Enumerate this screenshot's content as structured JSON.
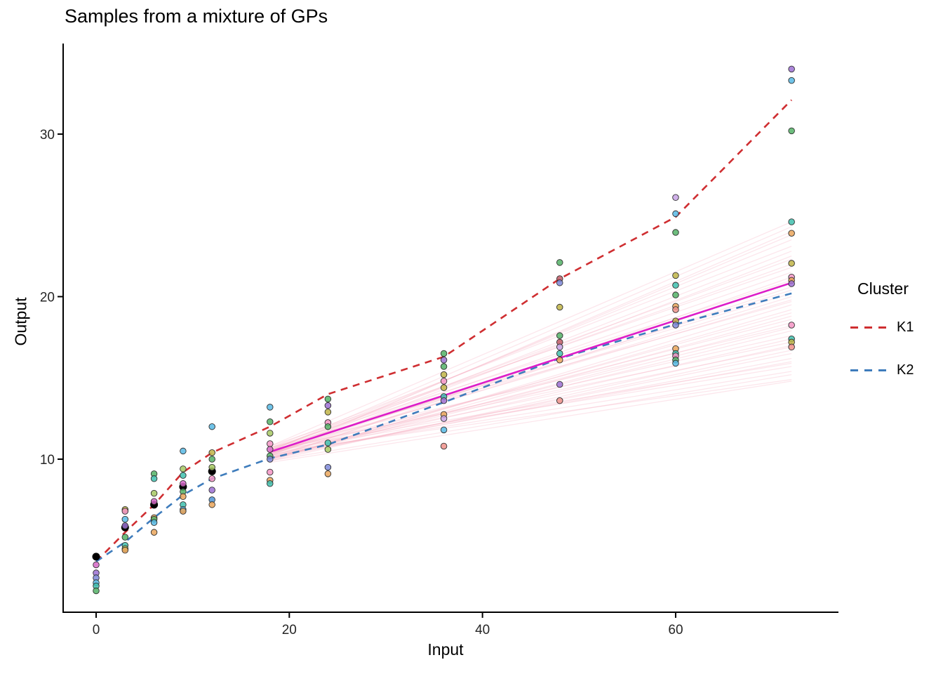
{
  "title": "Samples from a mixture of GPs",
  "x_axis": {
    "label": "Input",
    "ticks": [
      0,
      20,
      40,
      60
    ]
  },
  "y_axis": {
    "label": "Output",
    "ticks": [
      10,
      20,
      30
    ]
  },
  "legend": {
    "title": "Cluster",
    "entries": [
      {
        "label": "K1",
        "color": "#cf2e31"
      },
      {
        "label": "K2",
        "color": "#3e7cbc"
      }
    ]
  },
  "palette": {
    "green": "#54b266",
    "lightgreen": "#a6c862",
    "teal": "#3fbfae",
    "skyblue": "#57b8e4",
    "blue": "#4d94d6",
    "slate": "#7e88d8",
    "orange": "#eaa65c",
    "olive": "#bfb446",
    "pink": "#f394c4",
    "magenta": "#d467c6",
    "purple": "#9c70d4",
    "lavender": "#c8a3e6",
    "salmon": "#ee908a",
    "maroon": "#c05a66",
    "black": "#000000",
    "sample_line": "#f6a9bd",
    "mean_line": "#dd1dc8",
    "k1": "#cf2e31",
    "k2": "#3e7cbc",
    "axis": "#000000",
    "tick_text": "#262626"
  },
  "chart_data": {
    "type": "line+scatter",
    "title": "Samples from a mixture of GPs",
    "xlabel": "Input",
    "ylabel": "Output",
    "xlim": [
      -3.5,
      76
    ],
    "ylim": [
      -1,
      35.5
    ],
    "x_ticks": [
      0,
      20,
      40,
      60
    ],
    "y_ticks": [
      10,
      20,
      30
    ],
    "grid": false,
    "legend_position": "right",
    "series": [
      {
        "name": "K1",
        "style": "dashed",
        "color_key": "k1",
        "x": [
          0,
          3,
          6,
          9,
          12,
          18,
          24,
          36,
          48,
          60,
          72
        ],
        "y": [
          3.7,
          5.5,
          7.2,
          9.2,
          10.4,
          12.0,
          14.0,
          16.3,
          21.1,
          24.9,
          32.1
        ]
      },
      {
        "name": "K2",
        "style": "dashed",
        "color_key": "k2",
        "x": [
          0,
          3,
          6,
          9,
          12,
          18,
          24,
          36,
          48,
          60,
          72
        ],
        "y": [
          3.7,
          4.9,
          6.4,
          7.8,
          8.8,
          10.05,
          10.9,
          13.5,
          16.2,
          18.3,
          20.2
        ]
      },
      {
        "name": "mean",
        "style": "solid",
        "color_key": "mean_line",
        "x": [
          18,
          72
        ],
        "y": [
          10.45,
          20.85
        ]
      }
    ],
    "sample_lines": {
      "x_start": 18,
      "x_end": 72,
      "endpoints": [
        [
          10.4,
          19.8
        ],
        [
          10.1,
          16.5
        ],
        [
          10.6,
          22.3
        ],
        [
          10.2,
          18.1
        ],
        [
          10.8,
          24.6
        ],
        [
          9.9,
          15.2
        ],
        [
          10.3,
          20.9
        ],
        [
          10.5,
          17.6
        ],
        [
          10.0,
          19.2
        ],
        [
          10.7,
          23.1
        ],
        [
          10.2,
          16.0
        ],
        [
          10.4,
          21.5
        ],
        [
          9.8,
          14.8
        ],
        [
          10.6,
          20.2
        ],
        [
          10.1,
          17.9
        ],
        [
          10.3,
          22.8
        ],
        [
          10.5,
          15.7
        ],
        [
          10.0,
          18.8
        ],
        [
          10.7,
          21.0
        ],
        [
          10.2,
          24.0
        ],
        [
          10.4,
          16.9
        ],
        [
          9.9,
          19.5
        ],
        [
          10.6,
          17.2
        ],
        [
          10.1,
          20.6
        ],
        [
          10.3,
          15.4
        ],
        [
          10.5,
          23.5
        ],
        [
          10.0,
          18.4
        ],
        [
          10.8,
          21.8
        ],
        [
          10.2,
          19.0
        ],
        [
          10.4,
          14.9
        ],
        [
          10.6,
          22.0
        ],
        [
          9.9,
          17.0
        ],
        [
          10.3,
          20.0
        ],
        [
          10.5,
          24.3
        ],
        [
          10.1,
          16.2
        ],
        [
          10.7,
          19.7
        ],
        [
          10.0,
          21.2
        ],
        [
          10.4,
          18.6
        ],
        [
          10.2,
          22.5
        ],
        [
          10.6,
          15.9
        ],
        [
          10.3,
          23.8
        ],
        [
          10.1,
          17.4
        ],
        [
          10.5,
          20.4
        ],
        [
          10.0,
          16.7
        ],
        [
          10.7,
          18.2
        ]
      ]
    },
    "black_points": [
      [
        0,
        4.0
      ],
      [
        3,
        5.8
      ],
      [
        6,
        7.2
      ],
      [
        9,
        8.3
      ],
      [
        12,
        9.25
      ]
    ],
    "points": [
      [
        0,
        3.5,
        "magenta"
      ],
      [
        0,
        3.0,
        "purple"
      ],
      [
        0,
        2.7,
        "slate"
      ],
      [
        0,
        2.4,
        "skyblue"
      ],
      [
        0,
        2.2,
        "teal"
      ],
      [
        0,
        1.9,
        "green"
      ],
      [
        3,
        6.9,
        "olive"
      ],
      [
        3,
        6.8,
        "pink"
      ],
      [
        3,
        6.3,
        "skyblue"
      ],
      [
        3,
        5.9,
        "purple"
      ],
      [
        3,
        5.2,
        "green"
      ],
      [
        3,
        4.7,
        "teal"
      ],
      [
        3,
        4.5,
        "lightgreen"
      ],
      [
        3,
        4.4,
        "orange"
      ],
      [
        6,
        9.1,
        "green"
      ],
      [
        6,
        8.8,
        "teal"
      ],
      [
        6,
        7.9,
        "lightgreen"
      ],
      [
        6,
        7.4,
        "magenta"
      ],
      [
        6,
        6.4,
        "orange"
      ],
      [
        6,
        6.3,
        "green"
      ],
      [
        6,
        6.1,
        "skyblue"
      ],
      [
        6,
        5.5,
        "orange"
      ],
      [
        9,
        10.5,
        "skyblue"
      ],
      [
        9,
        9.4,
        "lightgreen"
      ],
      [
        9,
        9.0,
        "teal"
      ],
      [
        9,
        8.5,
        "magenta"
      ],
      [
        9,
        8.0,
        "green"
      ],
      [
        9,
        7.7,
        "orange"
      ],
      [
        9,
        7.2,
        "teal"
      ],
      [
        9,
        6.9,
        "skyblue"
      ],
      [
        9,
        6.8,
        "orange"
      ],
      [
        12,
        12.0,
        "skyblue"
      ],
      [
        12,
        10.4,
        "olive"
      ],
      [
        12,
        10.0,
        "green"
      ],
      [
        12,
        9.5,
        "lightgreen"
      ],
      [
        12,
        8.8,
        "pink"
      ],
      [
        12,
        8.1,
        "purple"
      ],
      [
        12,
        7.5,
        "blue"
      ],
      [
        12,
        7.2,
        "orange"
      ],
      [
        18,
        13.2,
        "skyblue"
      ],
      [
        18,
        12.3,
        "green"
      ],
      [
        18,
        11.6,
        "lightgreen"
      ],
      [
        18,
        10.95,
        "pink"
      ],
      [
        18,
        10.6,
        "magenta"
      ],
      [
        18,
        10.2,
        "green"
      ],
      [
        18,
        10.0,
        "slate"
      ],
      [
        18,
        9.2,
        "pink"
      ],
      [
        18,
        8.7,
        "orange"
      ],
      [
        18,
        8.5,
        "teal"
      ],
      [
        24,
        13.7,
        "green"
      ],
      [
        24,
        13.3,
        "purple"
      ],
      [
        24,
        12.9,
        "olive"
      ],
      [
        24,
        12.25,
        "pink"
      ],
      [
        24,
        12.0,
        "green"
      ],
      [
        24,
        11.0,
        "teal"
      ],
      [
        24,
        10.6,
        "lightgreen"
      ],
      [
        24,
        9.5,
        "slate"
      ],
      [
        24,
        9.1,
        "orange"
      ],
      [
        36,
        16.5,
        "green"
      ],
      [
        36,
        16.1,
        "purple"
      ],
      [
        36,
        15.7,
        "green"
      ],
      [
        36,
        15.2,
        "olive"
      ],
      [
        36,
        14.8,
        "pink"
      ],
      [
        36,
        14.4,
        "olive"
      ],
      [
        36,
        13.85,
        "teal"
      ],
      [
        36,
        13.6,
        "purple"
      ],
      [
        36,
        12.75,
        "orange"
      ],
      [
        36,
        12.5,
        "lavender"
      ],
      [
        36,
        11.8,
        "skyblue"
      ],
      [
        36,
        10.8,
        "salmon"
      ],
      [
        48,
        22.1,
        "green"
      ],
      [
        48,
        21.1,
        "maroon"
      ],
      [
        48,
        20.85,
        "slate"
      ],
      [
        48,
        19.35,
        "olive"
      ],
      [
        48,
        17.6,
        "green"
      ],
      [
        48,
        17.2,
        "maroon"
      ],
      [
        48,
        16.9,
        "lavender"
      ],
      [
        48,
        16.5,
        "teal"
      ],
      [
        48,
        16.1,
        "orange"
      ],
      [
        48,
        14.6,
        "purple"
      ],
      [
        48,
        13.6,
        "salmon"
      ],
      [
        60,
        26.1,
        "lavender"
      ],
      [
        60,
        25.1,
        "skyblue"
      ],
      [
        60,
        23.95,
        "green"
      ],
      [
        60,
        21.3,
        "olive"
      ],
      [
        60,
        20.7,
        "teal"
      ],
      [
        60,
        20.1,
        "green"
      ],
      [
        60,
        19.4,
        "orange"
      ],
      [
        60,
        19.2,
        "salmon"
      ],
      [
        60,
        18.5,
        "olive"
      ],
      [
        60,
        18.25,
        "slate"
      ],
      [
        60,
        16.8,
        "orange"
      ],
      [
        60,
        16.5,
        "teal"
      ],
      [
        60,
        16.35,
        "pink"
      ],
      [
        60,
        16.1,
        "green"
      ],
      [
        60,
        15.9,
        "skyblue"
      ],
      [
        72,
        34.0,
        "purple"
      ],
      [
        72,
        33.3,
        "skyblue"
      ],
      [
        72,
        30.2,
        "green"
      ],
      [
        72,
        24.6,
        "teal"
      ],
      [
        72,
        23.9,
        "orange"
      ],
      [
        72,
        22.05,
        "olive"
      ],
      [
        72,
        21.2,
        "pink"
      ],
      [
        72,
        21.0,
        "orange"
      ],
      [
        72,
        20.8,
        "purple"
      ],
      [
        72,
        18.25,
        "pink"
      ],
      [
        72,
        17.4,
        "teal"
      ],
      [
        72,
        17.2,
        "olive"
      ],
      [
        72,
        16.9,
        "salmon"
      ]
    ]
  }
}
